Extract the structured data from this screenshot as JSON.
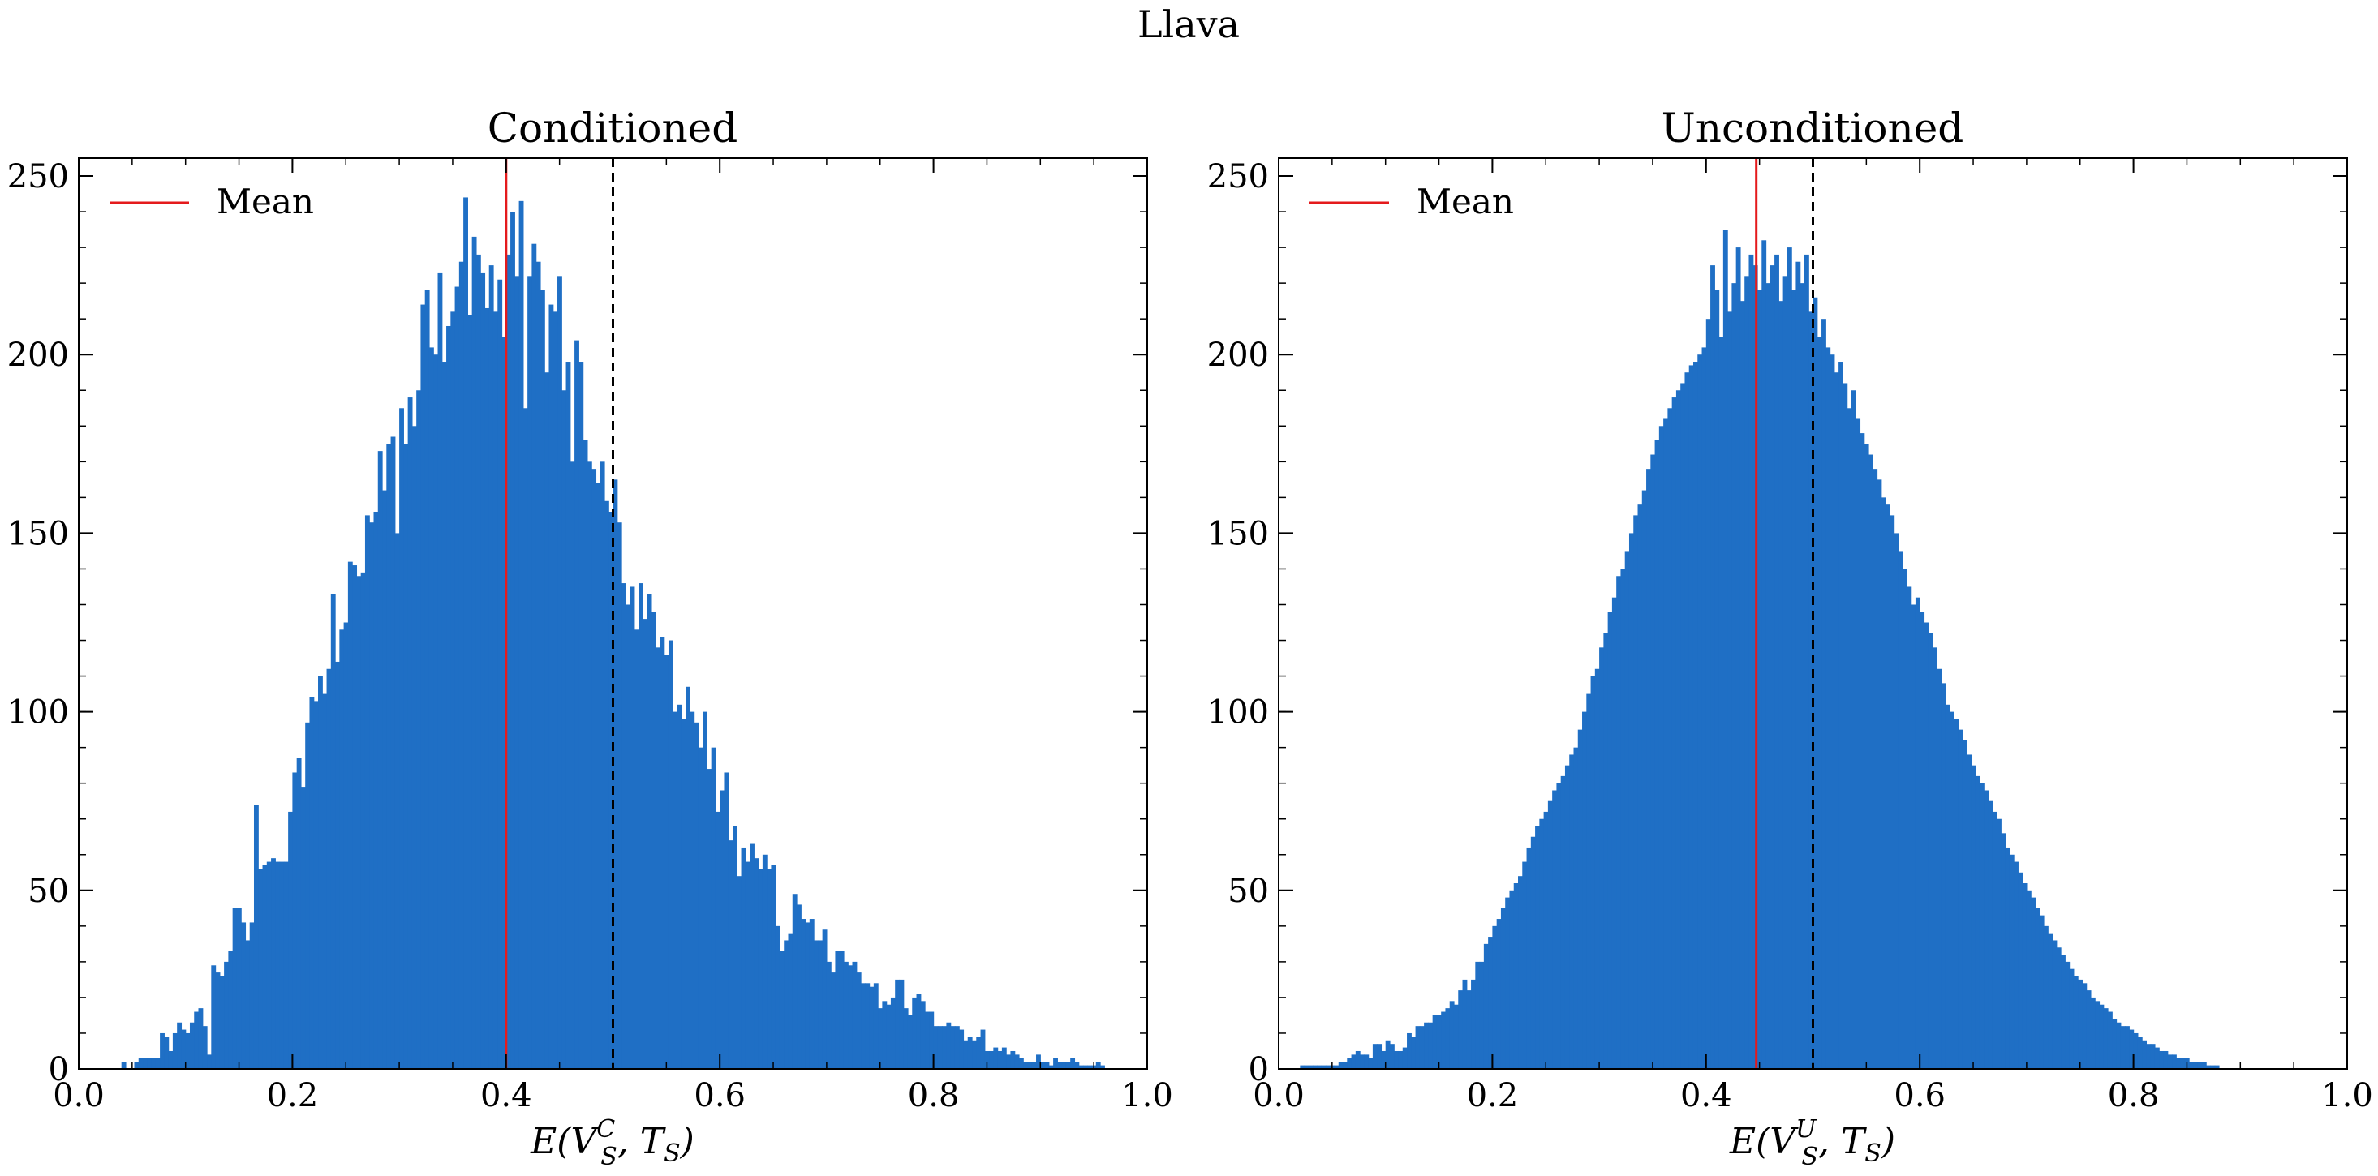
{
  "figure": {
    "suptitle": "Llava",
    "accent_color": "#1f6fc5",
    "mean_color": "#e41a1c",
    "threshold_color": "#000000"
  },
  "chart_data": [
    {
      "type": "bar",
      "subtype": "histogram",
      "title": "Conditioned",
      "xlabel_base": "E(V",
      "xlabel_sub": "S",
      "xlabel_sup": "C",
      "xlabel_tail": ", T",
      "xlabel_tail_sub": "S",
      "xlabel_close": ")",
      "ylabel": "",
      "xlim": [
        0.0,
        1.0
      ],
      "ylim": [
        0,
        255
      ],
      "xticks": [
        0.0,
        0.2,
        0.4,
        0.6,
        0.8,
        1.0
      ],
      "xtick_labels": [
        "0.0",
        "0.2",
        "0.4",
        "0.6",
        "0.8",
        "1.0"
      ],
      "yticks": [
        0,
        50,
        100,
        150,
        200,
        250
      ],
      "ytick_labels": [
        "0",
        "50",
        "100",
        "150",
        "200",
        "250"
      ],
      "grid": false,
      "legend": {
        "position": "top-left",
        "entries": [
          "Mean"
        ]
      },
      "mean": 0.4,
      "threshold": 0.5,
      "bin_start": 0.04,
      "bin_width": 0.004,
      "counts": [
        2,
        0,
        0,
        2,
        3,
        3,
        3,
        3,
        3,
        10,
        9,
        5,
        10,
        13,
        11,
        10,
        13,
        16,
        17,
        12,
        4,
        29,
        27,
        26,
        30,
        33,
        45,
        45,
        41,
        36,
        41,
        74,
        56,
        57,
        58,
        59,
        58,
        58,
        58,
        72,
        83,
        87,
        79,
        97,
        104,
        103,
        110,
        105,
        112,
        133,
        114,
        123,
        125,
        142,
        141,
        138,
        139,
        155,
        153,
        156,
        173,
        162,
        175,
        177,
        150,
        185,
        175,
        188,
        180,
        190,
        214,
        218,
        202,
        200,
        223,
        198,
        208,
        212,
        219,
        226,
        244,
        211,
        233,
        228,
        223,
        213,
        225,
        212,
        221,
        205,
        228,
        240,
        222,
        243,
        185,
        222,
        231,
        226,
        218,
        195,
        214,
        212,
        222,
        190,
        198,
        170,
        204,
        198,
        176,
        170,
        168,
        164,
        170,
        159,
        156,
        165,
        153,
        136,
        130,
        135,
        123,
        136,
        126,
        133,
        128,
        118,
        121,
        116,
        120,
        100,
        102,
        98,
        107,
        100,
        97,
        90,
        100,
        84,
        90,
        72,
        78,
        83,
        64,
        68,
        54,
        62,
        58,
        63,
        59,
        56,
        60,
        56,
        57,
        40,
        33,
        36,
        38,
        49,
        46,
        42,
        41,
        42,
        36,
        36,
        39,
        30,
        27,
        33,
        33,
        30,
        29,
        30,
        27,
        24,
        24,
        23,
        24,
        17,
        19,
        18,
        20,
        25,
        25,
        17,
        15,
        20,
        21,
        19,
        16,
        16,
        12,
        12,
        12,
        13,
        12,
        12,
        11,
        8,
        9,
        8,
        9,
        11,
        5,
        5,
        6,
        5,
        6,
        4,
        5,
        4,
        3,
        2,
        2,
        2,
        4,
        2,
        2,
        1,
        3,
        2,
        2,
        2,
        3,
        2,
        1,
        1,
        1,
        1,
        2,
        1
      ]
    },
    {
      "type": "bar",
      "subtype": "histogram",
      "title": "Unconditioned",
      "xlabel_base": "E(V",
      "xlabel_sub": "S",
      "xlabel_sup": "U",
      "xlabel_tail": ", T",
      "xlabel_tail_sub": "S",
      "xlabel_close": ")",
      "ylabel": "",
      "xlim": [
        0.0,
        1.0
      ],
      "ylim": [
        0,
        255
      ],
      "xticks": [
        0.0,
        0.2,
        0.4,
        0.6,
        0.8,
        1.0
      ],
      "xtick_labels": [
        "0.0",
        "0.2",
        "0.4",
        "0.6",
        "0.8",
        "1.0"
      ],
      "yticks": [
        0,
        50,
        100,
        150,
        200,
        250
      ],
      "ytick_labels": [
        "0",
        "50",
        "100",
        "150",
        "200",
        "250"
      ],
      "grid": false,
      "legend": {
        "position": "top-left",
        "entries": [
          "Mean"
        ]
      },
      "mean": 0.447,
      "threshold": 0.5,
      "bin_start": 0.02,
      "bin_width": 0.004,
      "counts": [
        1,
        1,
        1,
        1,
        1,
        1,
        1,
        1,
        1,
        2,
        2,
        3,
        4,
        5,
        4,
        4,
        3,
        7,
        7,
        5,
        8,
        7,
        5,
        5,
        6,
        10,
        9,
        12,
        12,
        13,
        13,
        15,
        15,
        16,
        17,
        19,
        18,
        22,
        25,
        22,
        25,
        30,
        30,
        35,
        37,
        40,
        42,
        45,
        48,
        50,
        52,
        54,
        58,
        62,
        65,
        68,
        70,
        72,
        75,
        78,
        80,
        82,
        85,
        88,
        90,
        95,
        100,
        105,
        110,
        112,
        118,
        122,
        128,
        132,
        138,
        140,
        145,
        150,
        155,
        158,
        162,
        168,
        172,
        176,
        180,
        182,
        185,
        188,
        190,
        192,
        195,
        197,
        198,
        200,
        202,
        210,
        225,
        218,
        205,
        235,
        212,
        220,
        230,
        215,
        222,
        228,
        225,
        218,
        232,
        220,
        225,
        228,
        215,
        222,
        230,
        218,
        226,
        220,
        228,
        212,
        216,
        205,
        210,
        202,
        200,
        195,
        198,
        192,
        185,
        190,
        182,
        178,
        175,
        172,
        168,
        165,
        160,
        158,
        155,
        150,
        145,
        140,
        135,
        130,
        132,
        128,
        125,
        122,
        118,
        112,
        108,
        102,
        100,
        98,
        95,
        92,
        88,
        85,
        82,
        80,
        78,
        75,
        72,
        70,
        66,
        62,
        60,
        58,
        55,
        52,
        50,
        48,
        45,
        43,
        40,
        38,
        36,
        34,
        32,
        30,
        28,
        26,
        25,
        24,
        22,
        20,
        19,
        18,
        17,
        16,
        14,
        13,
        12,
        12,
        11,
        10,
        9,
        8,
        7,
        7,
        6,
        5,
        5,
        4,
        4,
        3,
        3,
        3,
        2,
        2,
        2,
        2,
        1,
        1,
        1
      ]
    }
  ]
}
